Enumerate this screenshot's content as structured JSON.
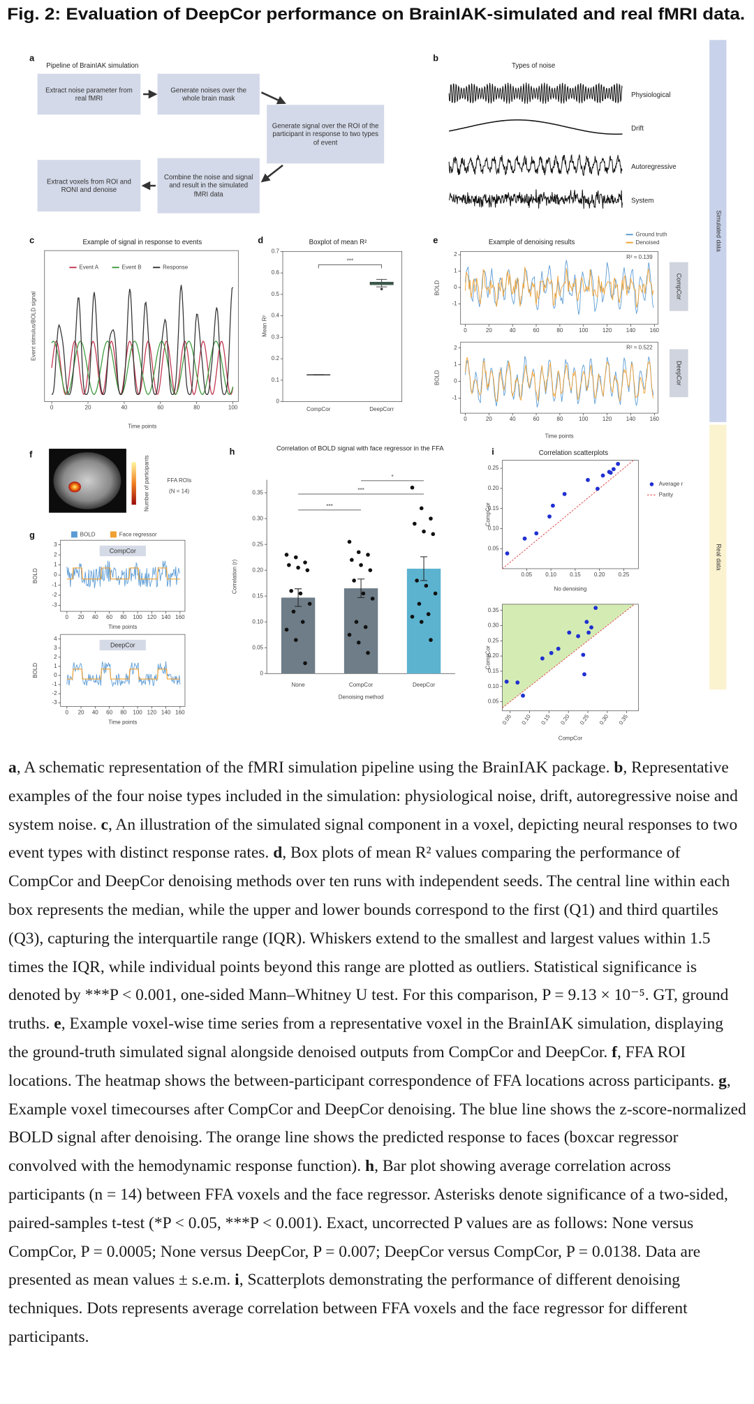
{
  "figure": {
    "title": "Fig. 2: Evaluation of DeepCor performance on BrainIAK-simulated and real fMRI data.",
    "side_labels": {
      "simulated": "Simulated data",
      "real": "Real data"
    },
    "panel_a": {
      "letter": "a",
      "title": "Pipeline of BrainIAK simulation",
      "steps": [
        "Extract noise parameter from real fMRI",
        "Generate noises over the whole brain mask",
        "Generate signal over the ROI of the participant in response to two types of event",
        "Combine the noise and signal and result in the simulated fMRI data",
        "Extract voxels from ROI and RONI and denoise"
      ]
    },
    "panel_b": {
      "letter": "b",
      "title": "Types of noise",
      "noise_types": [
        "Physiological",
        "Drift",
        "Autoregressive",
        "System"
      ]
    },
    "panel_c": {
      "letter": "c",
      "title": "Example of signal in response to events",
      "xlabel": "Time points",
      "ylabel": "Event stimulus/BOLD signal",
      "series": [
        {
          "name": "Event A",
          "color": "#c2344e"
        },
        {
          "name": "Event B",
          "color": "#3d9a3d"
        },
        {
          "name": "Response",
          "color": "#333333"
        }
      ],
      "xlim": [
        -4,
        103
      ],
      "xticks": [
        0,
        20,
        40,
        60,
        80,
        100
      ]
    },
    "panel_d": {
      "letter": "d",
      "title": "Boxplot of mean R²",
      "ylabel": "Mean R²",
      "categories": [
        "CompCor",
        "DeepCorr"
      ],
      "color": "#4f8f72",
      "boxes": [
        {
          "whislo": 0.124,
          "q1": 0.124,
          "median": 0.125,
          "q3": 0.126,
          "whishi": 0.126
        },
        {
          "whislo": 0.535,
          "q1": 0.545,
          "median": 0.551,
          "q3": 0.557,
          "whishi": 0.57,
          "outliers": [
            0.525
          ]
        }
      ],
      "significance": "***",
      "ylim": [
        0,
        0.7
      ],
      "yticks": [
        0,
        0.1,
        0.2,
        0.3,
        0.4,
        0.5,
        0.6,
        0.7
      ]
    },
    "panel_e": {
      "letter": "e",
      "title": "Example of denoising results",
      "xlabel": "Time points",
      "ylabel": "BOLD",
      "series": [
        {
          "name": "Ground truth",
          "color": "#5b9bd5"
        },
        {
          "name": "Denoised",
          "color": "#f0a030"
        }
      ],
      "xlim": [
        -4,
        163
      ],
      "xticks": [
        0,
        20,
        40,
        60,
        80,
        100,
        120,
        140,
        160
      ],
      "plots": [
        {
          "method": "CompCor",
          "annotation": "R² = 0.139",
          "ylim": [
            -2.25,
            2.2
          ],
          "yticks": [
            2,
            1,
            0,
            -1
          ]
        },
        {
          "method": "DeepCor",
          "annotation": "R² = 0.522",
          "ylim": [
            -1.9,
            2.35
          ],
          "yticks": [
            2,
            1,
            0,
            -1
          ]
        }
      ]
    },
    "panel_f": {
      "letter": "f",
      "roi_label": "FFA ROIs",
      "n_label": "(N = 14)",
      "colorbar_label": "Number of participants"
    },
    "panel_g": {
      "letter": "g",
      "xlabel": "Time points",
      "ylabel": "BOLD",
      "series": [
        {
          "name": "BOLD",
          "color": "#5b9bd5"
        },
        {
          "name": "Face regressor",
          "color": "#f0a030"
        }
      ],
      "xlim": [
        -9,
        167
      ],
      "xticks": [
        0,
        20,
        40,
        60,
        80,
        100,
        120,
        140,
        160
      ],
      "plots": [
        {
          "method": "CompCor",
          "ylim": [
            -3.6,
            3.45
          ],
          "yticks": [
            3,
            2,
            1,
            0,
            -1,
            -2,
            -3
          ]
        },
        {
          "method": "DeepCor",
          "ylim": [
            -3.4,
            4.5
          ],
          "yticks": [
            4,
            3,
            2,
            1,
            0,
            -1,
            -2,
            -3
          ]
        }
      ]
    },
    "panel_h": {
      "letter": "h",
      "title": "Correlation of BOLD signal with face regressor in the FFA",
      "xlabel": "Denoising method",
      "ylabel": "Correlation (r)",
      "categories": [
        "None",
        "CompCor",
        "DeepCor"
      ],
      "values": [
        0.147,
        0.165,
        0.203
      ],
      "errors": [
        0.017,
        0.018,
        0.023
      ],
      "colors": [
        "#6e7d87",
        "#6e7d87",
        "#5cb3cf"
      ],
      "points": [
        [
          0.23,
          0.225,
          0.215,
          0.21,
          0.205,
          0.2,
          0.16,
          0.155,
          0.135,
          0.12,
          0.1,
          0.085,
          0.065,
          0.02
        ],
        [
          0.255,
          0.235,
          0.23,
          0.22,
          0.21,
          0.2,
          0.18,
          0.155,
          0.145,
          0.1,
          0.09,
          0.075,
          0.06,
          0.04
        ],
        [
          0.36,
          0.32,
          0.3,
          0.29,
          0.275,
          0.27,
          0.18,
          0.17,
          0.155,
          0.135,
          0.115,
          0.11,
          0.1,
          0.065
        ]
      ],
      "significance": [
        "***",
        "***",
        "*"
      ],
      "ylim": [
        0,
        0.375
      ],
      "yticks": [
        0,
        0.05,
        {
          "value": 0.1,
          "label": "0.10"
        },
        0.15,
        {
          "value": 0.2,
          "label": "0.20"
        },
        0.25,
        {
          "value": 0.3,
          "label": "0.30"
        },
        0.35
      ]
    },
    "panel_i": {
      "letter": "i",
      "title": "Correlation scatterplots",
      "legend": {
        "points": "Average r",
        "parity": "Parity"
      },
      "point_color": "#2030d0",
      "parity_color": "#e05050",
      "shade": "#d4ecb4",
      "plots": [
        {
          "xlabel": "No denoising",
          "ylabel": "CompCor",
          "xlim": [
            0,
            0.28
          ],
          "ylim": [
            0,
            0.27
          ],
          "x": [
            0.01,
            0.046,
            0.07,
            0.097,
            0.104,
            0.128,
            0.176,
            0.196,
            0.207,
            0.22,
            0.229,
            0.238,
            0.223
          ],
          "y": [
            0.038,
            0.075,
            0.088,
            0.13,
            0.157,
            0.186,
            0.221,
            0.199,
            0.232,
            0.241,
            0.248,
            0.261,
            0.239
          ],
          "xticks": [
            0.05,
            {
              "value": 0.1,
              "label": "0.10"
            },
            0.15,
            {
              "value": 0.2,
              "label": "0.20"
            },
            0.25
          ],
          "yticks": [
            0.05,
            {
              "value": 0.1,
              "label": "0.10"
            },
            0.15,
            {
              "value": 0.2,
              "label": "0.20"
            },
            0.25
          ]
        },
        {
          "xlabel": "CompCor",
          "ylabel": "CompCor",
          "xlim": [
            0.03,
            0.38
          ],
          "ylim": [
            0.02,
            0.37
          ],
          "x": [
            0.041,
            0.069,
            0.083,
            0.133,
            0.156,
            0.174,
            0.202,
            0.225,
            0.247,
            0.252,
            0.259,
            0.27,
            0.238,
            0.241
          ],
          "y": [
            0.116,
            0.113,
            0.07,
            0.192,
            0.21,
            0.224,
            0.277,
            0.265,
            0.312,
            0.277,
            0.294,
            0.358,
            0.204,
            0.14
          ],
          "xticks": [
            0.05,
            {
              "value": 0.1,
              "label": "0.10"
            },
            0.15,
            {
              "value": 0.2,
              "label": "0.20"
            },
            0.25,
            {
              "value": 0.3,
              "label": "0.30"
            },
            0.35
          ],
          "yticks": [
            0.05,
            {
              "value": 0.1,
              "label": "0.10"
            },
            0.15,
            {
              "value": 0.2,
              "label": "0.20"
            },
            0.25,
            {
              "value": 0.3,
              "label": "0.30"
            },
            0.35
          ]
        }
      ]
    }
  },
  "caption": [
    {
      "label": "a",
      "text": ", A schematic representation of the fMRI simulation pipeline using the BrainIAK package."
    },
    {
      "label": "b",
      "text": ", Representative examples of the four noise types included in the simulation: physiological noise, drift, autoregressive noise and system noise."
    },
    {
      "label": "c",
      "text": ", An illustration of the simulated signal component in a voxel, depicting neural responses to two event types with distinct response rates."
    },
    {
      "label": "d",
      "text": ", Box plots of mean R² values comparing the performance of CompCor and DeepCor denoising methods over ten runs with independent seeds. The central line within each box represents the median, while the upper and lower bounds correspond to the first (Q1) and third quartiles (Q3), capturing the interquartile range (IQR). Whiskers extend to the smallest and largest values within 1.5 times the IQR, while individual points beyond this range are plotted as outliers. Statistical significance is denoted by ***P < 0.001, one-sided Mann–Whitney U test. For this comparison, P = 9.13 × 10⁻⁵. GT, ground truths."
    },
    {
      "label": "e",
      "text": ", Example voxel-wise time series from a representative voxel in the BrainIAK simulation, displaying the ground-truth simulated signal alongside denoised outputs from CompCor and DeepCor."
    },
    {
      "label": "f",
      "text": ", FFA ROI locations. The heatmap shows the between-participant correspondence of FFA locations across participants."
    },
    {
      "label": "g",
      "text": ", Example voxel timecourses after CompCor and DeepCor denoising. The blue line shows the z-score-normalized BOLD signal after denoising. The orange line shows the predicted response to faces (boxcar regressor convolved with the hemodynamic response function)."
    },
    {
      "label": "h",
      "text": ", Bar plot showing average correlation across participants (n = 14) between FFA voxels and the face regressor. Asterisks denote significance of a two-sided, paired-samples t-test (*P < 0.05, ***P < 0.001). Exact, uncorrected P values are as follows: None versus CompCor, P = 0.0005; None versus DeepCor, P = 0.007; DeepCor versus CompCor, P = 0.0138. Data are presented as mean values ± s.e.m."
    },
    {
      "label": "i",
      "text": ", Scatterplots demonstrating the performance of different denoising techniques. Dots represents average correlation between FFA voxels and the face regressor for different participants."
    }
  ]
}
